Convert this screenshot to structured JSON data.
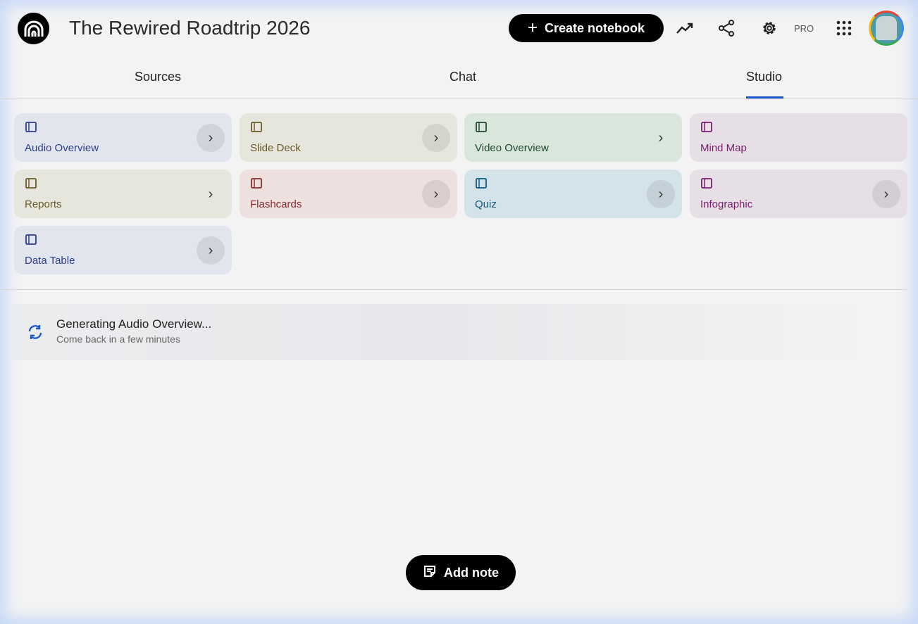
{
  "header": {
    "title": "The Rewired Roadtrip 2026",
    "create_label": "Create notebook",
    "pro_label": "PRO"
  },
  "tabs": [
    {
      "label": "Sources"
    },
    {
      "label": "Chat"
    },
    {
      "label": "Studio",
      "active": true
    }
  ],
  "studio": {
    "cards": [
      {
        "label": "Audio Overview",
        "icon": "audio-waveform-icon",
        "bg": "#e2e5ee",
        "color": "#2b3f8a"
      },
      {
        "label": "Slide Deck",
        "icon": "slides-icon",
        "bg": "#e7e6dd",
        "color": "#6b5a2a"
      },
      {
        "label": "Video Overview",
        "icon": "video-icon",
        "bg": "#d8e6db",
        "color": "#1d4a2a"
      },
      {
        "label": "Mind Map",
        "icon": "mind-map-icon",
        "bg": "#e7dfe6",
        "color": "#7a1f6e"
      },
      {
        "label": "Reports",
        "icon": "reports-icon",
        "bg": "#e7e6dd",
        "color": "#6b5a2a"
      },
      {
        "label": "Flashcards",
        "icon": "flashcards-icon",
        "bg": "#ede0de",
        "color": "#8a2a2a"
      },
      {
        "label": "Quiz",
        "icon": "quiz-icon",
        "bg": "#d4e2ea",
        "color": "#0f5a80"
      },
      {
        "label": "Infographic",
        "icon": "infographic-icon",
        "bg": "#e7dfe6",
        "color": "#7a1f6e"
      },
      {
        "label": "Data Table",
        "icon": "data-table-icon",
        "bg": "#e2e5ee",
        "color": "#2b3f8a"
      }
    ]
  },
  "generating": {
    "title": "Generating Audio Overview...",
    "subtitle": "Come back in a few minutes"
  },
  "add_note_label": "Add note"
}
